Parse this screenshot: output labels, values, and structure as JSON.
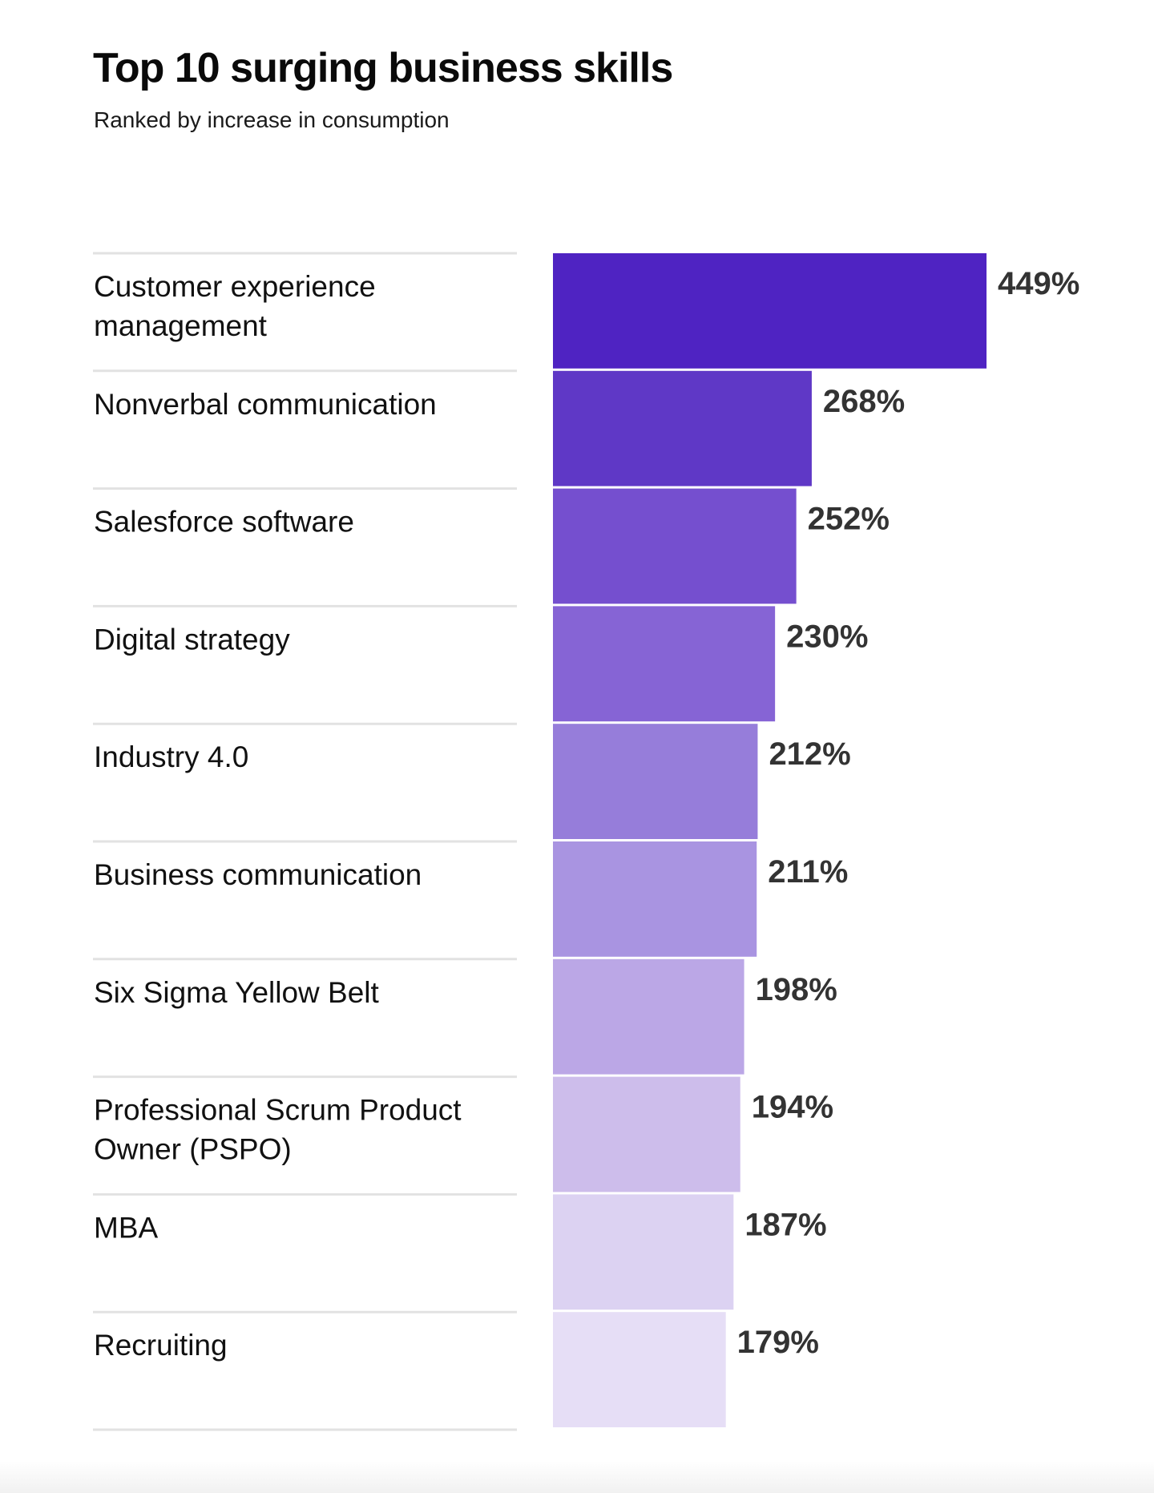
{
  "chart_data": {
    "type": "bar",
    "orientation": "horizontal",
    "title": "Top 10 surging business skills",
    "subtitle": "Ranked by increase in consumption",
    "categories": [
      "Customer experience management",
      "Nonverbal communication",
      "Salesforce software",
      "Digital strategy",
      "Industry 4.0",
      "Business communication",
      "Six Sigma Yellow Belt",
      "Professional Scrum Product Owner (PSPO)",
      "MBA",
      "Recruiting"
    ],
    "category_lines": [
      [
        "Customer experience",
        "management"
      ],
      [
        "Nonverbal communication"
      ],
      [
        "Salesforce software"
      ],
      [
        "Digital strategy"
      ],
      [
        "Industry 4.0"
      ],
      [
        "Business communication"
      ],
      [
        "Six Sigma Yellow Belt"
      ],
      [
        "Professional Scrum Product",
        "Owner (PSPO)"
      ],
      [
        "MBA"
      ],
      [
        "Recruiting"
      ]
    ],
    "values": [
      449,
      268,
      252,
      230,
      212,
      211,
      198,
      194,
      187,
      179
    ],
    "value_labels": [
      "449%",
      "268%",
      "252%",
      "230%",
      "212%",
      "211%",
      "198%",
      "194%",
      "187%",
      "179%"
    ],
    "unit": "%",
    "xlim": [
      0,
      449
    ],
    "xlabel": "",
    "ylabel": "",
    "grid": false,
    "legend": "none",
    "bar_colors": [
      "#4f23c2",
      "#5f38c6",
      "#754fcf",
      "#8664d5",
      "#967dda",
      "#a994e1",
      "#bba7e6",
      "#cdbdeb",
      "#dcd2f2",
      "#e6def6"
    ],
    "divider_color": "#e2e2e2",
    "label_color": "#111111",
    "value_color": "#333333"
  }
}
